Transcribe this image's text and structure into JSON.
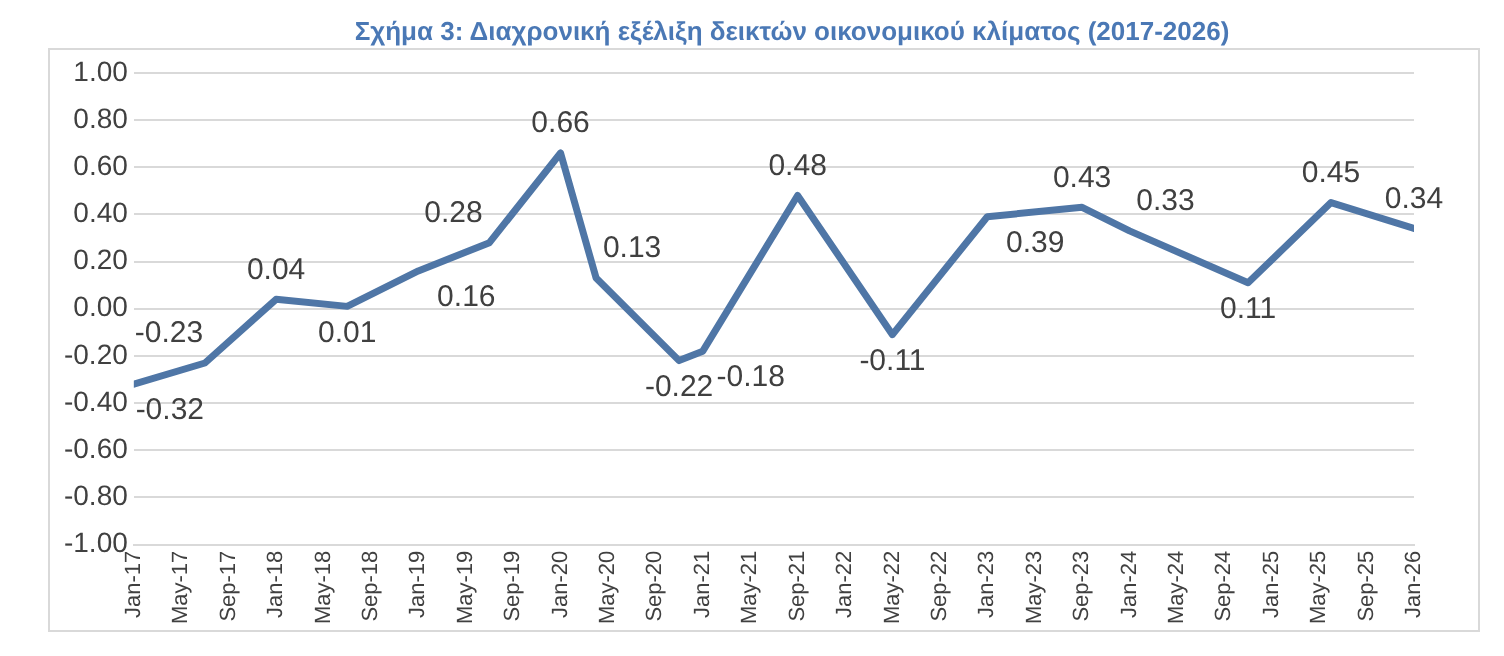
{
  "chart_data": {
    "type": "line",
    "title": "Σχήμα 3: Διαχρονική εξέλιξη δεικτών οικονομικού κλίματος (2017-2026)",
    "x": [
      "2017-01",
      "2017-07",
      "2018-01",
      "2018-07",
      "2019-01",
      "2019-07",
      "2020-01",
      "2020-04",
      "2020-11",
      "2021-01",
      "2021-09",
      "2022-05",
      "2023-01",
      "2023-09",
      "2024-01",
      "2024-11",
      "2025-06",
      "2026-01"
    ],
    "series": [
      {
        "color": "#4f76a6",
        "values": [
          -0.32,
          -0.23,
          0.04,
          0.01,
          0.16,
          0.28,
          0.66,
          0.13,
          -0.22,
          -0.18,
          0.48,
          -0.11,
          0.39,
          0.43,
          0.33,
          0.11,
          0.45,
          0.34
        ]
      }
    ],
    "data_labels": true,
    "xlim": [
      "2017-01",
      "2026-01"
    ],
    "xticks": [
      {
        "value": "2017-01",
        "label": "Jan-17"
      },
      {
        "value": "2017-05",
        "label": "May-17"
      },
      {
        "value": "2017-09",
        "label": "Sep-17"
      },
      {
        "value": "2018-01",
        "label": "Jan-18"
      },
      {
        "value": "2018-05",
        "label": "May-18"
      },
      {
        "value": "2018-09",
        "label": "Sep-18"
      },
      {
        "value": "2019-01",
        "label": "Jan-19"
      },
      {
        "value": "2019-05",
        "label": "May-19"
      },
      {
        "value": "2019-09",
        "label": "Sep-19"
      },
      {
        "value": "2020-01",
        "label": "Jan-20"
      },
      {
        "value": "2020-05",
        "label": "May-20"
      },
      {
        "value": "2020-09",
        "label": "Sep-20"
      },
      {
        "value": "2021-01",
        "label": "Jan-21"
      },
      {
        "value": "2021-05",
        "label": "May-21"
      },
      {
        "value": "2021-09",
        "label": "Sep-21"
      },
      {
        "value": "2022-01",
        "label": "Jan-22"
      },
      {
        "value": "2022-05",
        "label": "May-22"
      },
      {
        "value": "2022-09",
        "label": "Sep-22"
      },
      {
        "value": "2023-01",
        "label": "Jan-23"
      },
      {
        "value": "2023-05",
        "label": "May-23"
      },
      {
        "value": "2023-09",
        "label": "Sep-23"
      },
      {
        "value": "2024-01",
        "label": "Jan-24"
      },
      {
        "value": "2024-05",
        "label": "May-24"
      },
      {
        "value": "2024-09",
        "label": "Sep-24"
      },
      {
        "value": "2025-01",
        "label": "Jan-25"
      },
      {
        "value": "2025-05",
        "label": "May-25"
      },
      {
        "value": "2025-09",
        "label": "Sep-25"
      },
      {
        "value": "2026-01",
        "label": "Jan-26"
      }
    ],
    "ylim": [
      -1,
      1
    ],
    "yticks": [
      {
        "value": -1,
        "label": "-1.00"
      },
      {
        "value": -0.8,
        "label": "-0.80"
      },
      {
        "value": -0.6,
        "label": "-0.60"
      },
      {
        "value": -0.4,
        "label": "-0.40"
      },
      {
        "value": -0.2,
        "label": "-0.20"
      },
      {
        "value": 0,
        "label": "0.00"
      },
      {
        "value": 0.2,
        "label": "0.20"
      },
      {
        "value": 0.4,
        "label": "0.40"
      },
      {
        "value": 0.6,
        "label": "0.60"
      },
      {
        "value": 0.8,
        "label": "0.80"
      },
      {
        "value": 1,
        "label": "1.00"
      }
    ],
    "grid": "y",
    "legend": false,
    "marker": "none",
    "line_style": "solid"
  }
}
